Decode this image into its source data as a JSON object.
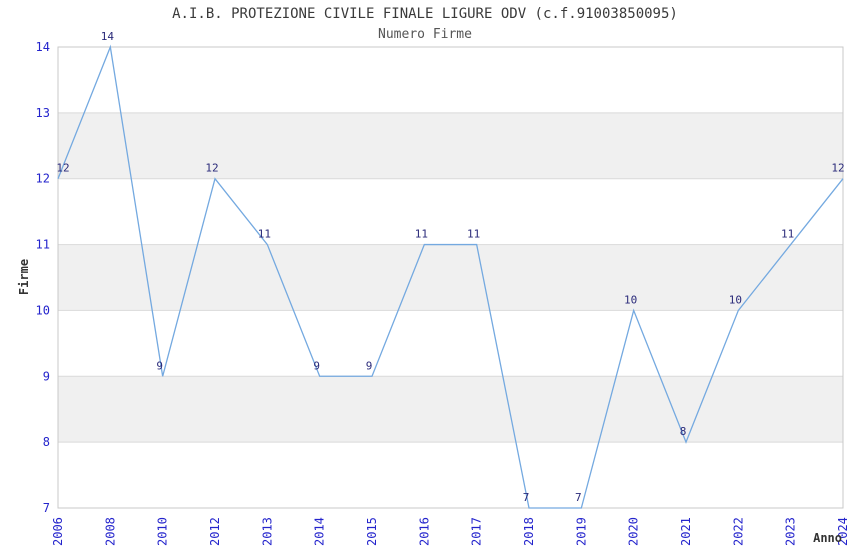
{
  "colors": {
    "line": "#74a9e0",
    "tick_label": "#2424cc",
    "point_label": "#2a2a7a",
    "band": "#f0f0f0",
    "grid": "#d9d9d9",
    "border": "#c9c9c9",
    "title": "#3a3a3a",
    "subtitle": "#555555",
    "axis_label": "#333333"
  },
  "chart_data": {
    "type": "line",
    "title": "A.I.B. PROTEZIONE CIVILE FINALE LIGURE ODV (c.f.91003850095)",
    "subtitle": "Numero Firme",
    "xlabel": "Anno",
    "ylabel": "Firme",
    "categories": [
      "2006",
      "2008",
      "2010",
      "2012",
      "2013",
      "2014",
      "2015",
      "2016",
      "2017",
      "2018",
      "2019",
      "2020",
      "2021",
      "2022",
      "2023",
      "2024"
    ],
    "values": [
      12,
      14,
      9,
      12,
      11,
      9,
      9,
      11,
      11,
      7,
      7,
      10,
      8,
      10,
      11,
      12
    ],
    "ylim": [
      7,
      14
    ],
    "y_ticks": [
      7,
      8,
      9,
      10,
      11,
      12,
      13,
      14
    ],
    "grid": "horizontal",
    "banded_rows": true,
    "point_labels": true,
    "legend": "none",
    "x_tick_rotation": -90
  }
}
